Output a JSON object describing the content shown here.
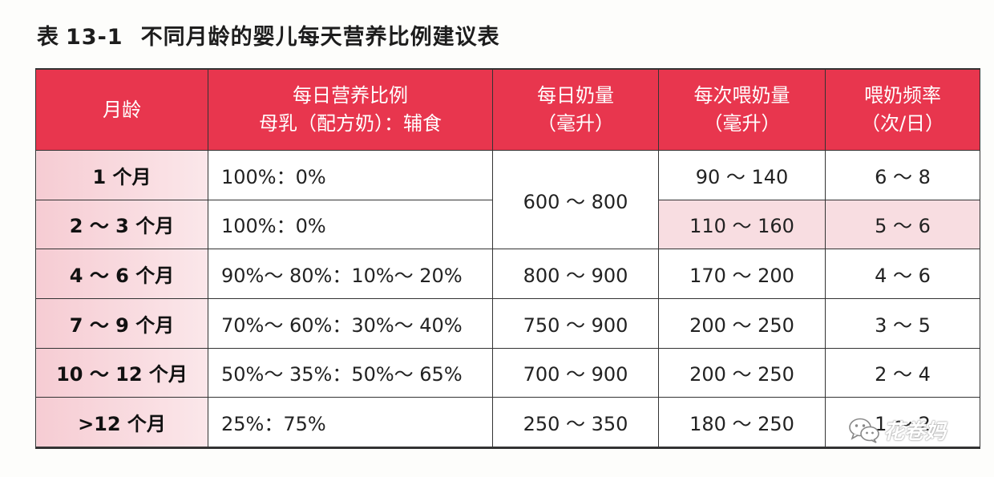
{
  "title": {
    "prefix": "表",
    "number": "13-1",
    "text": "不同月龄的婴儿每天营养比例建议表"
  },
  "headers": {
    "month": "月龄",
    "ratio_line1": "每日营养比例",
    "ratio_line2": "母乳（配方奶）：辅食",
    "daily_line1": "每日奶量",
    "daily_line2": "（毫升）",
    "per_line1": "每次喂奶量",
    "per_line2": "（毫升）",
    "freq_line1": "喂奶频率",
    "freq_line2": "（次/日）"
  },
  "rows": [
    {
      "month": "1 个月",
      "ratio": "100%：0%",
      "daily": "600 ～ 800",
      "per": "90 ～ 140",
      "freq": "6 ～ 8"
    },
    {
      "month": "2 ～ 3 个月",
      "ratio": "100%：0%",
      "daily": "600 ～ 800",
      "per": "110 ～ 160",
      "freq": "5 ～ 6"
    },
    {
      "month": "4 ～ 6 个月",
      "ratio": "90%～ 80%：10%～ 20%",
      "daily": "800 ～ 900",
      "per": "170 ～ 200",
      "freq": "4 ～ 6"
    },
    {
      "month": "7 ～ 9 个月",
      "ratio": "70%～ 60%：30%～ 40%",
      "daily": "750 ～ 900",
      "per": "200 ～ 250",
      "freq": "3 ～ 5"
    },
    {
      "month": "10 ～ 12 个月",
      "ratio": "50%～ 35%：50%～ 65%",
      "daily": "700 ～ 900",
      "per": "200 ～ 250",
      "freq": "2 ～ 4"
    },
    {
      "month": ">12 个月",
      "ratio": "25%：75%",
      "daily": "250 ～ 350",
      "per": "180 ～ 250",
      "freq": "1 ～ 2"
    }
  ],
  "watermark": {
    "text": "花卷妈",
    "icon": "wechat-icon"
  },
  "colors": {
    "header_bg": "#e8364e",
    "month_bg": "#f6ccd3",
    "pink_cell": "#f8dde1"
  }
}
